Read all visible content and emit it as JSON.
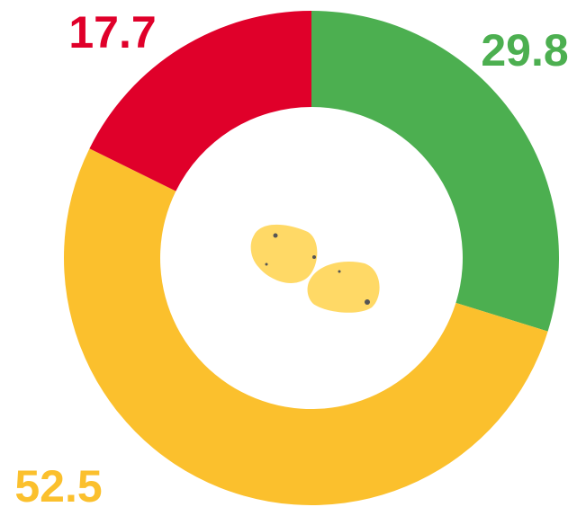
{
  "chart_data": {
    "type": "pie",
    "donut": true,
    "series": [
      {
        "values": [
          29.8,
          52.5,
          17.7
        ],
        "colors": [
          "#4caf50",
          "#fbc02d",
          "#e0002a"
        ]
      }
    ]
  }
}
